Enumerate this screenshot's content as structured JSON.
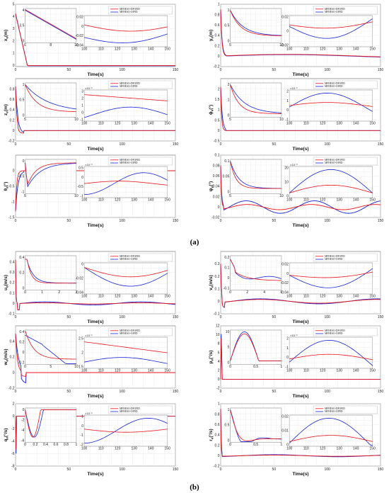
{
  "colors": {
    "red": "#e8141c",
    "blue": "#1424d8",
    "grid": "#e3e3e3",
    "axis": "#444444"
  },
  "legend": [
    "MFHESO-DFOFID",
    "MFHESO-OIPID"
  ],
  "panel_labels": [
    "(a)",
    "(b)"
  ],
  "chart_data": [
    {
      "id": "xe",
      "type": "line",
      "ylabel": "x_e(m)",
      "xlabel": "Time(s)",
      "xlim": [
        0,
        150
      ],
      "ylim": [
        -0.1,
        5
      ],
      "xticks": [
        0,
        50,
        100,
        150
      ],
      "yticks": [
        "0",
        "1",
        "2",
        "3",
        "4",
        "5"
      ],
      "insets": [
        {
          "xticks": [
            "6",
            "8",
            "10"
          ],
          "yticks": [
            "3",
            "3.5",
            "4"
          ]
        },
        {
          "xticks": [
            "100",
            "110",
            "120",
            "130",
            "140",
            "150"
          ],
          "yticks": [
            "-0.04",
            "-0.02",
            "0",
            "0.02"
          ],
          "exponent": ""
        }
      ]
    },
    {
      "id": "ye",
      "type": "line",
      "ylabel": "y_e(m)",
      "xlabel": "Time(s)",
      "xlim": [
        0,
        150
      ],
      "ylim": [
        -0.2,
        1
      ],
      "xticks": [
        0,
        50,
        100,
        150
      ],
      "yticks": [
        "-0.2",
        "0",
        "0.2",
        "0.4",
        "0.6",
        "0.8",
        "1"
      ],
      "insets": [
        {
          "xticks": [
            "5",
            "10"
          ],
          "yticks": [
            "0",
            "0.5",
            "1"
          ]
        },
        {
          "xticks": [
            "100",
            "110",
            "120",
            "130",
            "140",
            "150"
          ],
          "yticks": [
            "-0.02",
            "0",
            "0.02"
          ],
          "exponent": ""
        }
      ]
    },
    {
      "id": "ze",
      "type": "line",
      "ylabel": "z_e(m)",
      "xlabel": "Time(s)",
      "xlim": [
        0,
        150
      ],
      "ylim": [
        -0.2,
        1
      ],
      "xticks": [
        0,
        50,
        100,
        150
      ],
      "yticks": [
        "-0.2",
        "0",
        "0.2",
        "0.4",
        "0.6",
        "0.8"
      ],
      "insets": [
        {
          "xticks": [
            "5",
            "10"
          ],
          "yticks": [
            "0",
            "0.5",
            "1"
          ]
        },
        {
          "xticks": [
            "100",
            "110",
            "120",
            "130",
            "140",
            "150"
          ],
          "yticks": [
            "-1",
            "0",
            "1",
            "2",
            "3"
          ],
          "exponent": "×10⁻⁵"
        }
      ]
    },
    {
      "id": "phie",
      "type": "line",
      "ylabel": "ϕ_e(°)",
      "xlabel": "Time(s)",
      "xlim": [
        0,
        150
      ],
      "ylim": [
        -0.5,
        2.5
      ],
      "xticks": [
        0,
        50,
        100,
        150
      ],
      "yticks": [
        "-0.5",
        "0",
        "0.5",
        "1",
        "1.5",
        "2"
      ],
      "insets": [
        {
          "xticks": [
            "5",
            "10"
          ],
          "yticks": [
            "0",
            "1",
            "2"
          ]
        },
        {
          "xticks": [
            "100",
            "110",
            "120",
            "130",
            "140",
            "150"
          ],
          "yticks": [
            "-1",
            "0",
            "1",
            "2"
          ],
          "exponent": "×10⁻⁶"
        }
      ]
    },
    {
      "id": "thetae",
      "type": "line",
      "ylabel": "θ_e(°)",
      "xlabel": "Time(s)",
      "xlim": [
        0,
        150
      ],
      "ylim": [
        -1.5,
        0.5
      ],
      "xticks": [
        0,
        50,
        100,
        150
      ],
      "yticks": [
        "-1.5",
        "-1",
        "-0.5",
        "0"
      ],
      "insets": [
        {
          "xticks": [
            "5",
            "10"
          ],
          "yticks": [
            "-1",
            "-0.5",
            "0"
          ]
        },
        {
          "xticks": [
            "100",
            "110",
            "120",
            "130",
            "140",
            "150"
          ],
          "yticks": [
            "-1",
            "-0.5",
            "0",
            "0.5"
          ],
          "exponent": "×10⁻⁶"
        }
      ]
    },
    {
      "id": "psie",
      "type": "line",
      "ylabel": "ψ_e(°)",
      "xlabel": "Time(s)",
      "xlim": [
        0,
        150
      ],
      "ylim": [
        -0.02,
        0.1
      ],
      "xticks": [
        0,
        50,
        100,
        150
      ],
      "yticks": [
        "-0.02",
        "0",
        "0.02",
        "0.04",
        "0.06",
        "0.08",
        "0.1"
      ],
      "insets": [
        {
          "xticks": [
            "5",
            "10"
          ],
          "yticks": [
            "0",
            "0.05",
            "0.1"
          ]
        },
        {
          "xticks": [
            "100",
            "110",
            "120",
            "130",
            "140",
            "150"
          ],
          "yticks": [
            "0",
            "10",
            "20"
          ],
          "exponent": "×10⁻³"
        }
      ]
    },
    {
      "id": "ue",
      "type": "line",
      "ylabel": "u_e(m/s)",
      "xlabel": "Time(s)",
      "xlim": [
        0,
        150
      ],
      "ylim": [
        -0.1,
        0.5
      ],
      "xticks": [
        0,
        50,
        100,
        150
      ],
      "yticks": [
        "-0.1",
        "0",
        "0.1",
        "0.2",
        "0.3",
        "0.4"
      ],
      "insets": [
        {
          "xticks": [
            "0",
            "1",
            "2",
            "3"
          ],
          "yticks": [
            "0",
            "0.2",
            "0.4"
          ]
        },
        {
          "xticks": [
            "100",
            "110",
            "120",
            "130",
            "140",
            "150"
          ],
          "yticks": [
            "-0.04",
            "-0.02",
            "0"
          ],
          "exponent": ""
        }
      ]
    },
    {
      "id": "ve",
      "type": "line",
      "ylabel": "v_e(m/s)",
      "xlabel": "Time(s)",
      "xlim": [
        0,
        150
      ],
      "ylim": [
        -0.1,
        0.4
      ],
      "xticks": [
        0,
        50,
        100,
        150
      ],
      "yticks": [
        "-0.1",
        "0",
        "0.1",
        "0.2",
        "0.3"
      ],
      "insets": [
        {
          "xticks": [
            "0",
            "2",
            "4",
            "6"
          ],
          "yticks": [
            "-0.1",
            "0",
            "0.1",
            "0.2"
          ]
        },
        {
          "xticks": [
            "100",
            "110",
            "120",
            "130",
            "140",
            "150"
          ],
          "yticks": [
            "-0.04",
            "-0.02",
            "0",
            "0.02"
          ],
          "exponent": ""
        }
      ]
    },
    {
      "id": "we",
      "type": "line",
      "ylabel": "w_e(m/s)",
      "xlabel": "Time(s)",
      "xlim": [
        0,
        150
      ],
      "ylim": [
        -0.2,
        0.6
      ],
      "xticks": [
        0,
        50,
        100,
        150
      ],
      "yticks": [
        "-0.2",
        "0",
        "0.2",
        "0.4"
      ],
      "insets": [
        {
          "xticks": [
            "0",
            "5",
            "10"
          ],
          "yticks": [
            "-0.2",
            "0",
            "0.2",
            "0.4"
          ]
        },
        {
          "xticks": [
            "100",
            "110",
            "120",
            "130",
            "140",
            "150"
          ],
          "yticks": [
            "1.5",
            "2",
            "2.5"
          ],
          "exponent": "×10⁻⁵"
        }
      ]
    },
    {
      "id": "pe",
      "type": "line",
      "ylabel": "p_e(°/s)",
      "xlabel": "Time(s)",
      "xlim": [
        0,
        150
      ],
      "ylim": [
        -2,
        12
      ],
      "xticks": [
        0,
        50,
        100,
        150
      ],
      "yticks": [
        "-2",
        "0",
        "2",
        "4",
        "6",
        "8",
        "10",
        "12"
      ],
      "insets": [
        {
          "xticks": [
            "0",
            "0.5",
            "1"
          ],
          "yticks": [
            "0",
            "5",
            "10"
          ]
        },
        {
          "xticks": [
            "100",
            "110",
            "120",
            "130",
            "140",
            "150"
          ],
          "yticks": [
            "-1",
            "0",
            "1",
            "2"
          ],
          "exponent": "×10⁻⁶"
        }
      ]
    },
    {
      "id": "qe",
      "type": "line",
      "ylabel": "q_e(°/s)",
      "xlabel": "Time(s)",
      "xlim": [
        0,
        150
      ],
      "ylim": [
        -8,
        2
      ],
      "xticks": [
        0,
        50,
        100,
        150
      ],
      "yticks": [
        "-8",
        "-6",
        "-4",
        "-2",
        "0",
        "2"
      ],
      "insets": [
        {
          "xticks": [
            "0",
            "0.2",
            "0.4",
            "0.6",
            "0.8",
            "1"
          ],
          "yticks": [
            "-6",
            "-4",
            "-2",
            "0"
          ]
        },
        {
          "xticks": [
            "100",
            "110",
            "120",
            "130",
            "140",
            "150"
          ],
          "yticks": [
            "-2",
            "-1",
            "0",
            "1"
          ],
          "exponent": "×10⁻⁵"
        }
      ]
    },
    {
      "id": "re",
      "type": "line",
      "ylabel": "r_e(°/s)",
      "xlabel": "Time(s)",
      "xlim": [
        0,
        150
      ],
      "ylim": [
        -0.2,
        1
      ],
      "xticks": [
        0,
        50,
        100,
        150
      ],
      "yticks": [
        "-0.2",
        "0",
        "0.2",
        "0.4",
        "0.6",
        "0.8",
        "1"
      ],
      "insets": [
        {
          "xticks": [
            "0",
            "0.5",
            "1"
          ],
          "yticks": [
            "0",
            "0.5",
            "1"
          ]
        },
        {
          "xticks": [
            "100",
            "110",
            "120",
            "130",
            "140",
            "150"
          ],
          "yticks": [
            "0",
            "0.01",
            "0.02"
          ],
          "exponent": ""
        }
      ]
    }
  ]
}
